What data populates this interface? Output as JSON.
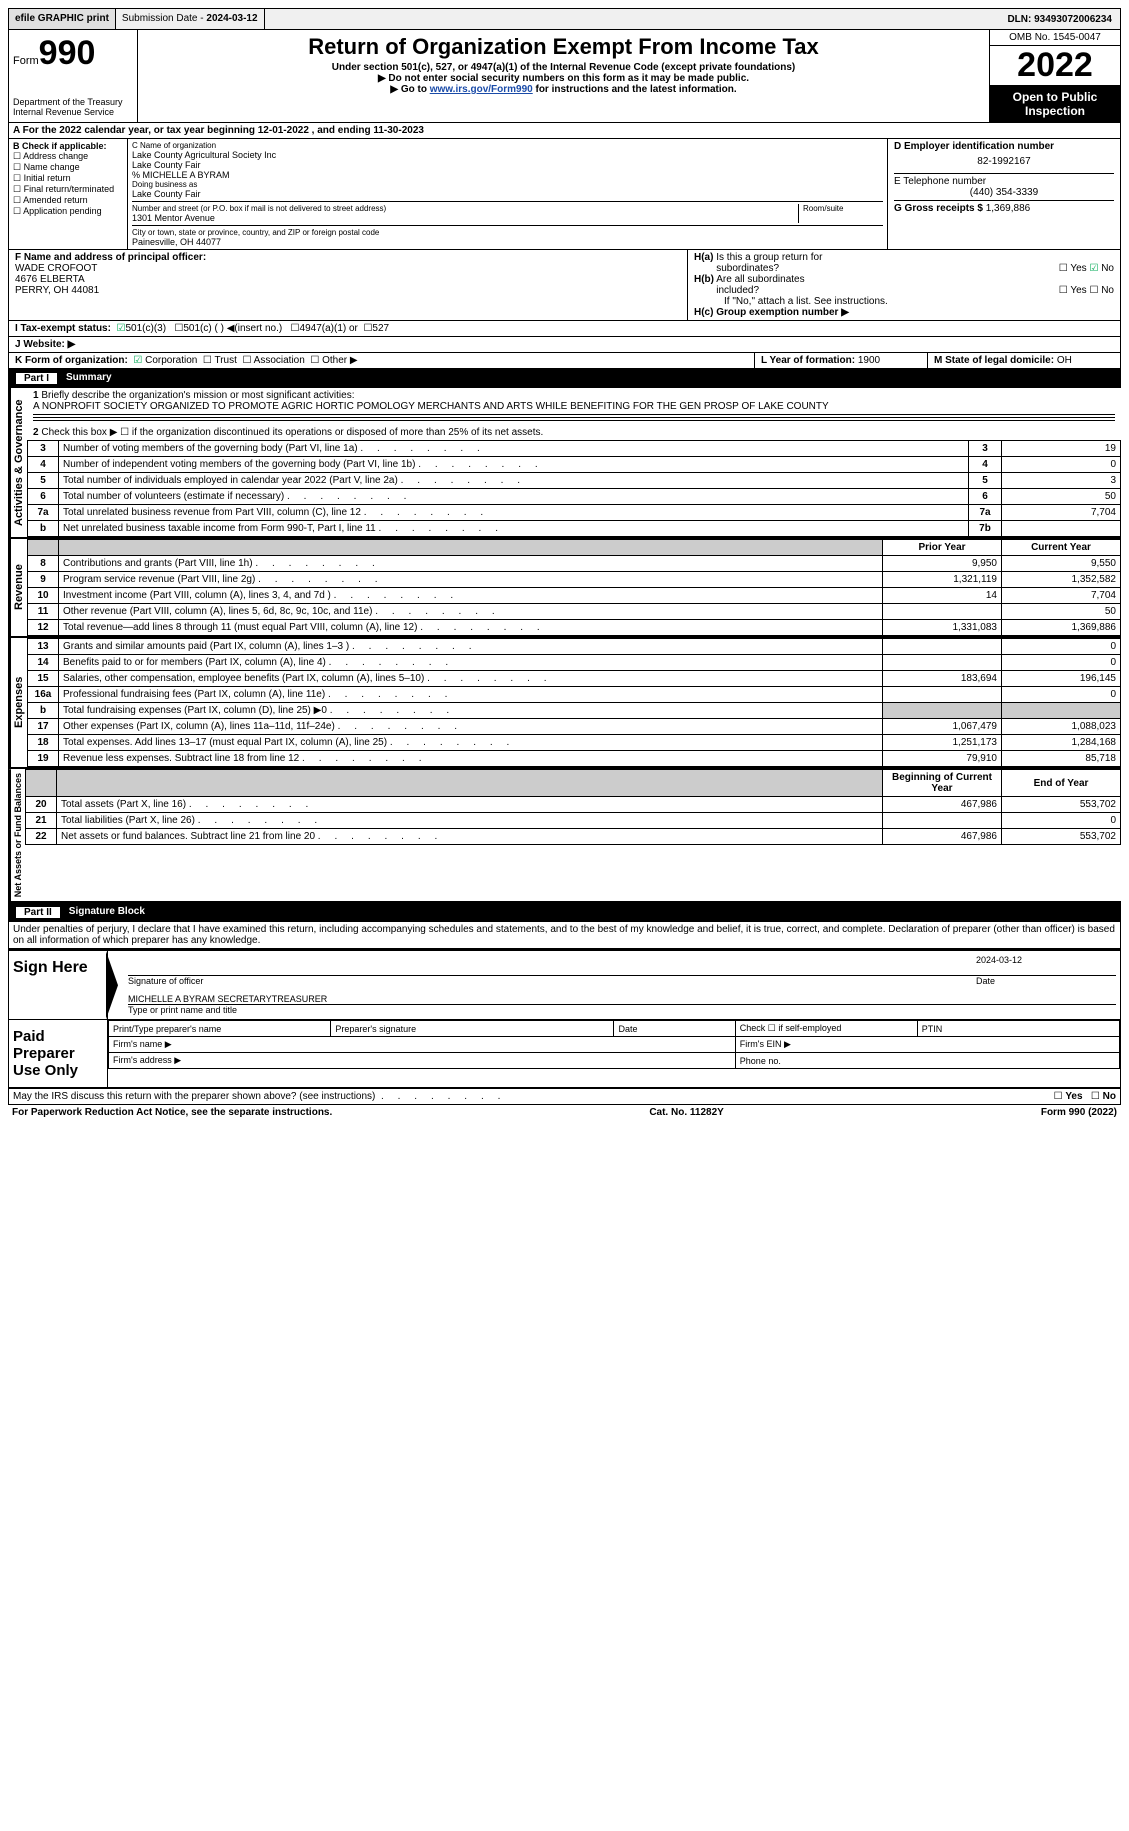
{
  "topbar": {
    "efile": "efile GRAPHIC print",
    "submission_label": "Submission Date - ",
    "submission_date": "2024-03-12",
    "dln_label": "DLN: ",
    "dln": "93493072006234"
  },
  "header": {
    "form_prefix": "Form",
    "form_number": "990",
    "dept": "Department of the Treasury\nInternal Revenue Service",
    "title": "Return of Organization Exempt From Income Tax",
    "subtitle": "Under section 501(c), 527, or 4947(a)(1) of the Internal Revenue Code (except private foundations)",
    "note1": "Do not enter social security numbers on this form as it may be made public.",
    "note2_pre": "Go to ",
    "note2_link": "www.irs.gov/Form990",
    "note2_post": " for instructions and the latest information.",
    "omb": "OMB No. 1545-0047",
    "tax_year": "2022",
    "inspect": "Open to Public Inspection"
  },
  "period": {
    "label_a": "A For the 2022 calendar year, or tax year beginning ",
    "begin": "12-01-2022",
    "label_mid": " , and ending ",
    "end": "11-30-2023"
  },
  "blockB": {
    "title": "B Check if applicable:",
    "items": [
      "Address change",
      "Name change",
      "Initial return",
      "Final return/terminated",
      "Amended return",
      "Application pending"
    ]
  },
  "blockC": {
    "name_label": "C Name of organization",
    "name1": "Lake County Agricultural Society Inc",
    "name2": "Lake County Fair",
    "care_of": "% MICHELLE A BYRAM",
    "dba_label": "Doing business as",
    "dba": "Lake County Fair",
    "street_label": "Number and street (or P.O. box if mail is not delivered to street address)",
    "room_label": "Room/suite",
    "street": "1301 Mentor Avenue",
    "city_label": "City or town, state or province, country, and ZIP or foreign postal code",
    "city": "Painesville, OH  44077"
  },
  "blockD": {
    "label": "D Employer identification number",
    "ein": "82-1992167",
    "phone_label": "E Telephone number",
    "phone": "(440) 354-3339",
    "gross_label": "G Gross receipts $ ",
    "gross": "1,369,886"
  },
  "blockF": {
    "label": "F Name and address of principal officer:",
    "name": "WADE CROFOOT",
    "addr1": "4676 ELBERTA",
    "addr2": "PERRY, OH  44081"
  },
  "blockH": {
    "a_label": "H(a) Is this a group return for subordinates?",
    "a_yes": "Yes",
    "a_no": "No",
    "b_label": "H(b) Are all subordinates included?",
    "b_note": "If \"No,\" attach a list. See instructions.",
    "c_label": "H(c) Group exemption number ▶"
  },
  "taxexempt": {
    "label": "I    Tax-exempt status:",
    "c3": "501(c)(3)",
    "c": "501(c) (  ) ◀(insert no.)",
    "a1": "4947(a)(1) or",
    "s527": "527"
  },
  "website": {
    "label": "J    Website: ▶"
  },
  "formorg": {
    "label": "K Form of organization:",
    "corp": "Corporation",
    "trust": "Trust",
    "assoc": "Association",
    "other": "Other ▶",
    "year_label": "L Year of formation: ",
    "year": "1900",
    "state_label": "M State of legal domicile: ",
    "state": "OH"
  },
  "part1": {
    "title": "Part I",
    "name": "Summary",
    "line1_label": "Briefly describe the organization's mission or most significant activities:",
    "mission": "A NONPROFIT SOCIETY ORGANIZED TO PROMOTE AGRIC HORTIC POMOLOGY MERCHANTS AND ARTS WHILE BENEFITING FOR THE GEN PROSP OF LAKE COUNTY",
    "line2": "Check this box ▶ ☐ if the organization discontinued its operations or disposed of more than 25% of its net assets.",
    "sections": {
      "activities": "Activities & Governance",
      "revenue": "Revenue",
      "expenses": "Expenses",
      "netassets": "Net Assets or Fund Balances"
    },
    "col_prior": "Prior Year",
    "col_current": "Current Year",
    "col_begin": "Beginning of Current Year",
    "col_end": "End of Year",
    "lines_gov": [
      {
        "n": "3",
        "d": "Number of voting members of the governing body (Part VI, line 1a)",
        "box": "3",
        "v": "19"
      },
      {
        "n": "4",
        "d": "Number of independent voting members of the governing body (Part VI, line 1b)",
        "box": "4",
        "v": "0"
      },
      {
        "n": "5",
        "d": "Total number of individuals employed in calendar year 2022 (Part V, line 2a)",
        "box": "5",
        "v": "3"
      },
      {
        "n": "6",
        "d": "Total number of volunteers (estimate if necessary)",
        "box": "6",
        "v": "50"
      },
      {
        "n": "7a",
        "d": "Total unrelated business revenue from Part VIII, column (C), line 12",
        "box": "7a",
        "v": "7,704"
      },
      {
        "n": "b",
        "d": "Net unrelated business taxable income from Form 990-T, Part I, line 11",
        "box": "7b",
        "v": ""
      }
    ],
    "lines_rev": [
      {
        "n": "8",
        "d": "Contributions and grants (Part VIII, line 1h)",
        "p": "9,950",
        "c": "9,550"
      },
      {
        "n": "9",
        "d": "Program service revenue (Part VIII, line 2g)",
        "p": "1,321,119",
        "c": "1,352,582"
      },
      {
        "n": "10",
        "d": "Investment income (Part VIII, column (A), lines 3, 4, and 7d )",
        "p": "14",
        "c": "7,704"
      },
      {
        "n": "11",
        "d": "Other revenue (Part VIII, column (A), lines 5, 6d, 8c, 9c, 10c, and 11e)",
        "p": "",
        "c": "50"
      },
      {
        "n": "12",
        "d": "Total revenue—add lines 8 through 11 (must equal Part VIII, column (A), line 12)",
        "p": "1,331,083",
        "c": "1,369,886"
      }
    ],
    "lines_exp": [
      {
        "n": "13",
        "d": "Grants and similar amounts paid (Part IX, column (A), lines 1–3 )",
        "p": "",
        "c": "0"
      },
      {
        "n": "14",
        "d": "Benefits paid to or for members (Part IX, column (A), line 4)",
        "p": "",
        "c": "0"
      },
      {
        "n": "15",
        "d": "Salaries, other compensation, employee benefits (Part IX, column (A), lines 5–10)",
        "p": "183,694",
        "c": "196,145"
      },
      {
        "n": "16a",
        "d": "Professional fundraising fees (Part IX, column (A), line 11e)",
        "p": "",
        "c": "0"
      },
      {
        "n": "b",
        "d": "Total fundraising expenses (Part IX, column (D), line 25) ▶0",
        "p": "shade",
        "c": "shade"
      },
      {
        "n": "17",
        "d": "Other expenses (Part IX, column (A), lines 11a–11d, 11f–24e)",
        "p": "1,067,479",
        "c": "1,088,023"
      },
      {
        "n": "18",
        "d": "Total expenses. Add lines 13–17 (must equal Part IX, column (A), line 25)",
        "p": "1,251,173",
        "c": "1,284,168"
      },
      {
        "n": "19",
        "d": "Revenue less expenses. Subtract line 18 from line 12",
        "p": "79,910",
        "c": "85,718"
      }
    ],
    "lines_net": [
      {
        "n": "20",
        "d": "Total assets (Part X, line 16)",
        "p": "467,986",
        "c": "553,702"
      },
      {
        "n": "21",
        "d": "Total liabilities (Part X, line 26)",
        "p": "",
        "c": "0"
      },
      {
        "n": "22",
        "d": "Net assets or fund balances. Subtract line 21 from line 20",
        "p": "467,986",
        "c": "553,702"
      }
    ]
  },
  "part2": {
    "title": "Part II",
    "name": "Signature Block",
    "perjury": "Under penalties of perjury, I declare that I have examined this return, including accompanying schedules and statements, and to the best of my knowledge and belief, it is true, correct, and complete. Declaration of preparer (other than officer) is based on all information of which preparer has any knowledge.",
    "sign_here": "Sign Here",
    "sig_officer": "Signature of officer",
    "date_label": "Date",
    "date": "2024-03-12",
    "officer_name": "MICHELLE A BYRAM  SECRETARYTREASURER",
    "type_name": "Type or print name and title",
    "paid": "Paid Preparer Use Only",
    "prep_name": "Print/Type preparer's name",
    "prep_sig": "Preparer's signature",
    "prep_date": "Date",
    "prep_check": "Check ☐ if self-employed",
    "ptin": "PTIN",
    "firm_name": "Firm's name  ▶",
    "firm_ein": "Firm's EIN ▶",
    "firm_addr": "Firm's address ▶",
    "firm_phone": "Phone no."
  },
  "discuss": {
    "text": "May the IRS discuss this return with the preparer shown above? (see instructions)",
    "yes": "Yes",
    "no": "No"
  },
  "footer": {
    "left": "For Paperwork Reduction Act Notice, see the separate instructions.",
    "mid": "Cat. No. 11282Y",
    "right": "Form 990 (2022)"
  }
}
